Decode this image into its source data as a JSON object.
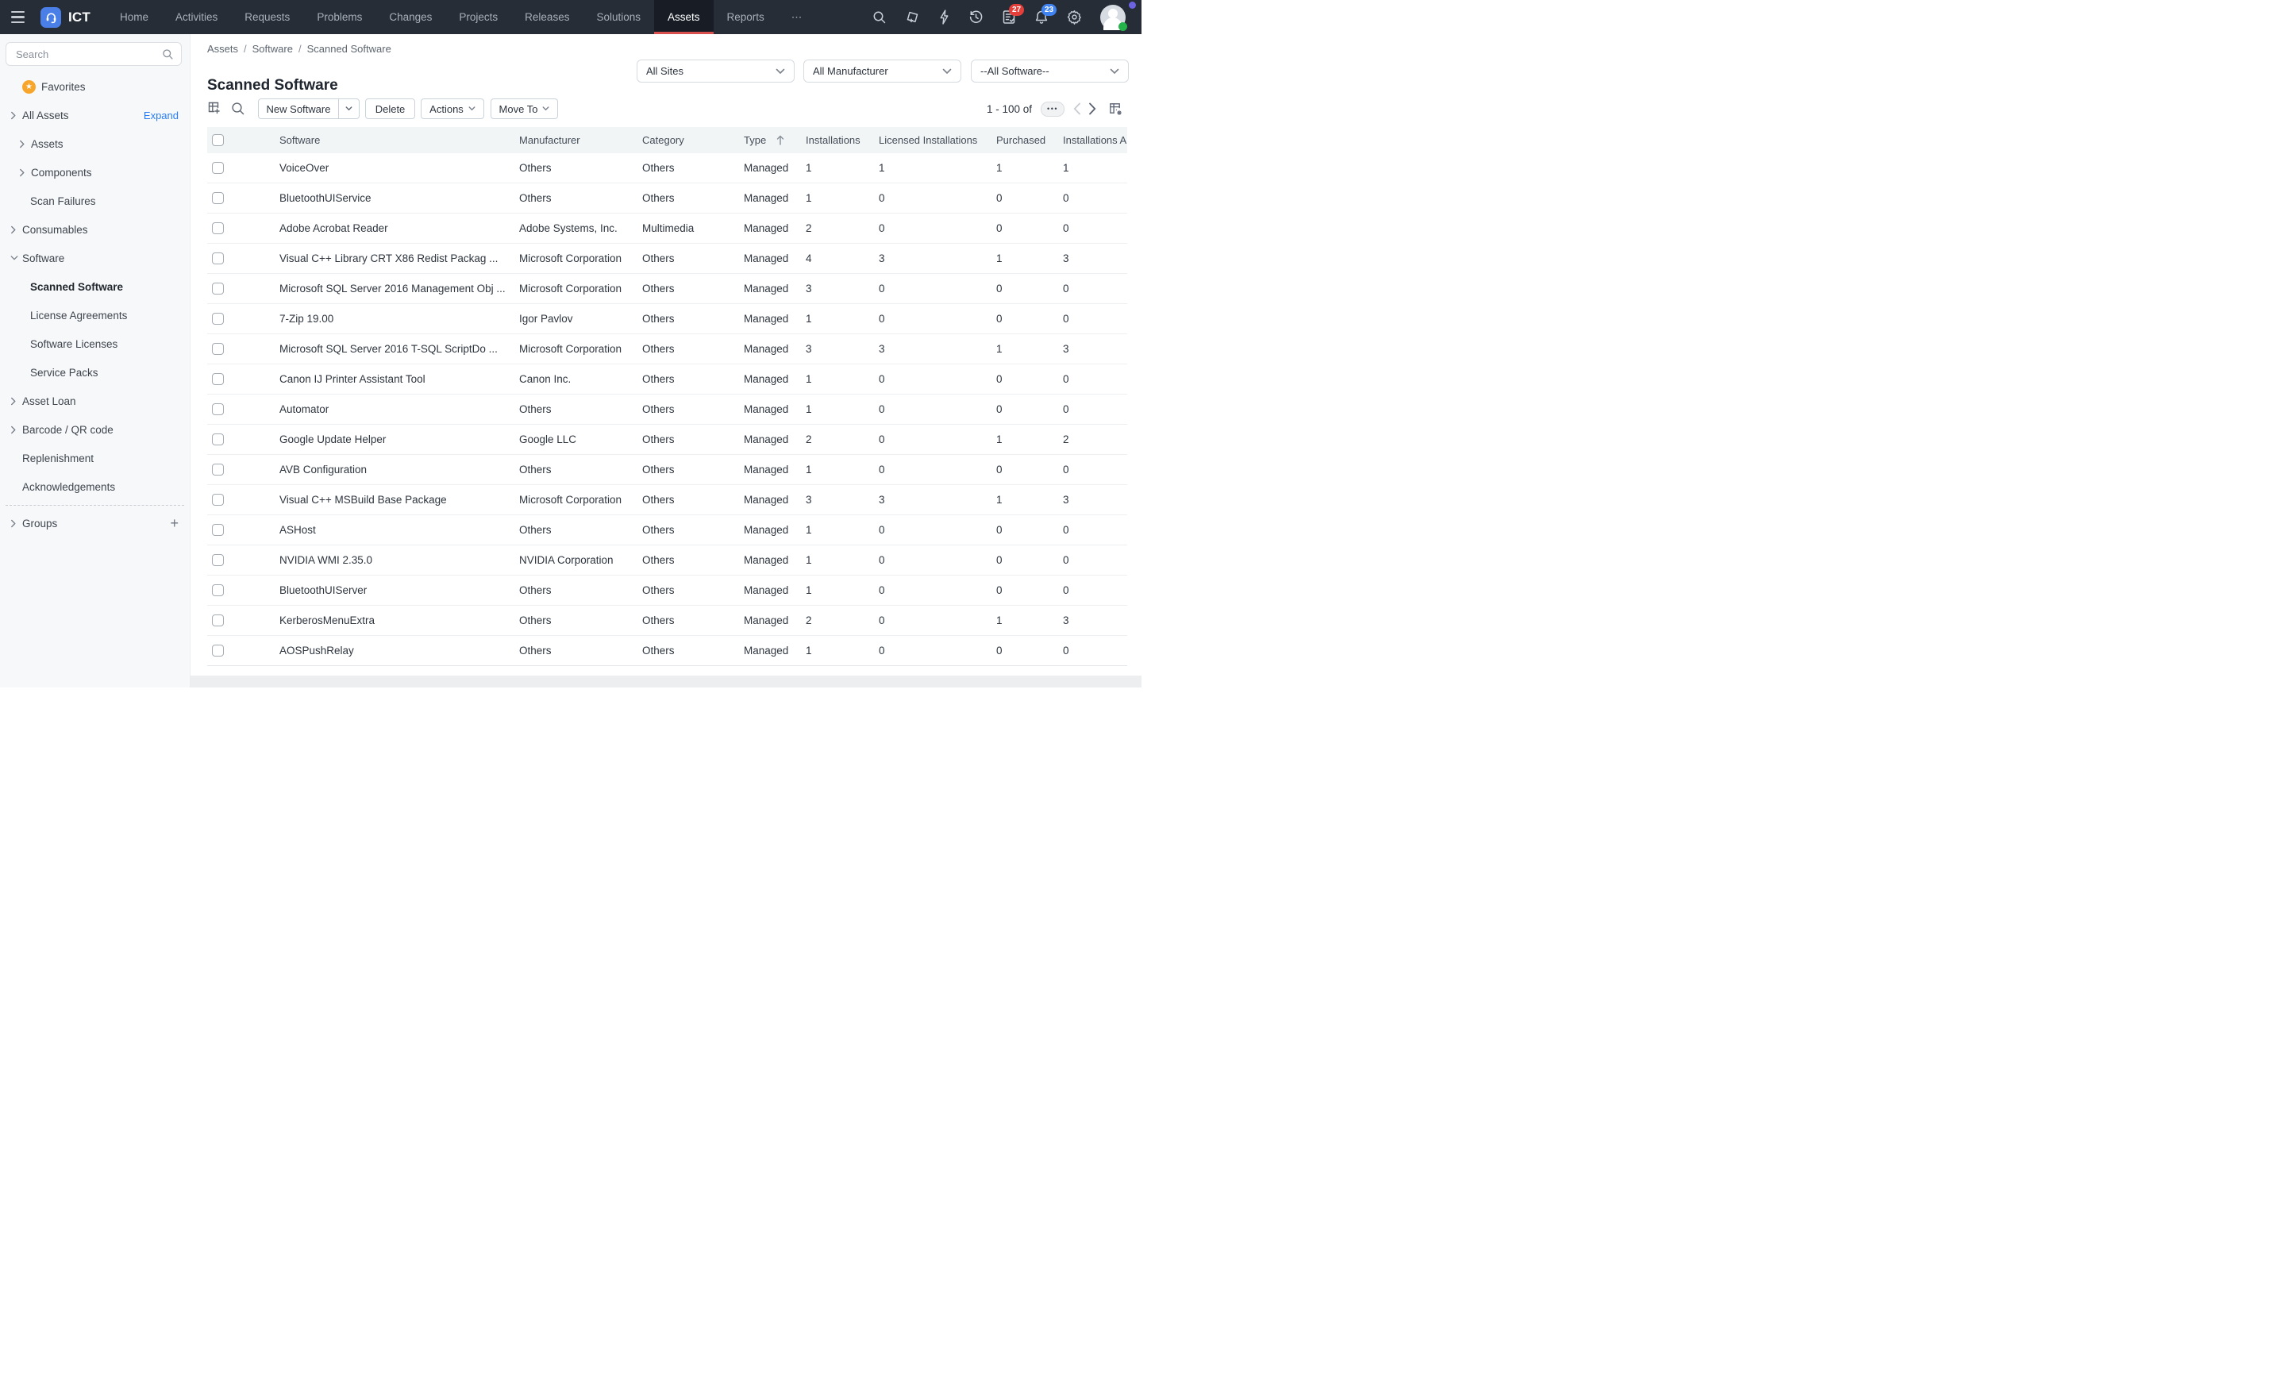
{
  "nav": {
    "brand": "ICT",
    "items": [
      "Home",
      "Activities",
      "Requests",
      "Problems",
      "Changes",
      "Projects",
      "Releases",
      "Solutions",
      "Assets",
      "Reports",
      "⋯"
    ],
    "active": "Assets",
    "badges": {
      "approvals": "27",
      "notifications": "23"
    },
    "icons": [
      "hamburger-icon",
      "headset-logo-icon",
      "search-icon",
      "ticket-add-icon",
      "lightning-icon",
      "history-icon",
      "approvals-icon",
      "bell-icon",
      "gear-icon",
      "avatar"
    ]
  },
  "sidebar": {
    "search_placeholder": "Search",
    "expand_label": "Expand",
    "items": [
      {
        "label": "Favorites",
        "level": 1,
        "icon": "star",
        "chevron": null
      },
      {
        "label": "All Assets",
        "level": 1,
        "chevron": "right",
        "trailing": "expand"
      },
      {
        "label": "Assets",
        "level": 2,
        "chevron": "right"
      },
      {
        "label": "Components",
        "level": 2,
        "chevron": "right"
      },
      {
        "label": "Scan Failures",
        "level": 2,
        "chevron": null
      },
      {
        "label": "Consumables",
        "level": 1,
        "chevron": "right"
      },
      {
        "label": "Software",
        "level": 1,
        "chevron": "down"
      },
      {
        "label": "Scanned Software",
        "level": 3,
        "chevron": null,
        "bold": true
      },
      {
        "label": "License Agreements",
        "level": 3,
        "chevron": null
      },
      {
        "label": "Software Licenses",
        "level": 3,
        "chevron": null
      },
      {
        "label": "Service Packs",
        "level": 3,
        "chevron": null
      },
      {
        "label": "Asset Loan",
        "level": 1,
        "chevron": "right"
      },
      {
        "label": "Barcode / QR code",
        "level": 1,
        "chevron": "right"
      },
      {
        "label": "Replenishment",
        "level": 1,
        "chevron": null
      },
      {
        "label": "Acknowledgements",
        "level": 1,
        "chevron": null
      },
      {
        "label": "Groups",
        "level": 1,
        "chevron": "right",
        "trailing": "plus",
        "divider_before": true
      }
    ]
  },
  "breadcrumb": [
    "Assets",
    "Software",
    "Scanned Software"
  ],
  "page_title": "Scanned Software",
  "filters": [
    "All Sites",
    "All Manufacturer",
    "--All Software--"
  ],
  "toolbar": {
    "new_software": "New Software",
    "delete": "Delete",
    "actions": "Actions",
    "move_to": "Move To",
    "icons": [
      "add-view-icon",
      "search-icon"
    ]
  },
  "pagination": {
    "range_label": "1 - 100 of",
    "more": "•••"
  },
  "table": {
    "columns": [
      "Software",
      "Manufacturer",
      "Category",
      "Type",
      "Installations",
      "Licensed Installations",
      "Purchased",
      "Installations A"
    ],
    "sorted_column": "Type",
    "sort_direction": "asc",
    "rows": [
      [
        "VoiceOver",
        "Others",
        "Others",
        "Managed",
        "1",
        "1",
        "1",
        "1"
      ],
      [
        "BluetoothUIService",
        "Others",
        "Others",
        "Managed",
        "1",
        "0",
        "0",
        "0"
      ],
      [
        "Adobe Acrobat Reader",
        "Adobe Systems, Inc.",
        "Multimedia",
        "Managed",
        "2",
        "0",
        "0",
        "0"
      ],
      [
        "Visual C++ Library CRT X86 Redist Packag ...",
        "Microsoft Corporation",
        "Others",
        "Managed",
        "4",
        "3",
        "1",
        "3"
      ],
      [
        "Microsoft SQL Server 2016 Management Obj ...",
        "Microsoft Corporation",
        "Others",
        "Managed",
        "3",
        "0",
        "0",
        "0"
      ],
      [
        "7-Zip 19.00",
        "Igor Pavlov",
        "Others",
        "Managed",
        "1",
        "0",
        "0",
        "0"
      ],
      [
        "Microsoft SQL Server 2016 T-SQL ScriptDo ...",
        "Microsoft Corporation",
        "Others",
        "Managed",
        "3",
        "3",
        "1",
        "3"
      ],
      [
        "Canon IJ Printer Assistant Tool",
        "Canon Inc.",
        "Others",
        "Managed",
        "1",
        "0",
        "0",
        "0"
      ],
      [
        "Automator",
        "Others",
        "Others",
        "Managed",
        "1",
        "0",
        "0",
        "0"
      ],
      [
        "Google Update Helper",
        "Google LLC",
        "Others",
        "Managed",
        "2",
        "0",
        "1",
        "2"
      ],
      [
        "AVB Configuration",
        "Others",
        "Others",
        "Managed",
        "1",
        "0",
        "0",
        "0"
      ],
      [
        "Visual C++ MSBuild Base Package",
        "Microsoft Corporation",
        "Others",
        "Managed",
        "3",
        "3",
        "1",
        "3"
      ],
      [
        "ASHost",
        "Others",
        "Others",
        "Managed",
        "1",
        "0",
        "0",
        "0"
      ],
      [
        "NVIDIA WMI 2.35.0",
        "NVIDIA Corporation",
        "Others",
        "Managed",
        "1",
        "0",
        "0",
        "0"
      ],
      [
        "BluetoothUIServer",
        "Others",
        "Others",
        "Managed",
        "1",
        "0",
        "0",
        "0"
      ],
      [
        "KerberosMenuExtra",
        "Others",
        "Others",
        "Managed",
        "2",
        "0",
        "1",
        "3"
      ],
      [
        "AOSPushRelay",
        "Others",
        "Others",
        "Managed",
        "1",
        "0",
        "0",
        "0"
      ]
    ]
  },
  "colors": {
    "nav_bg": "#262D37",
    "nav_active_bg": "#171C25",
    "accent_red": "#D8504D",
    "badge_red": "#E43F3A",
    "badge_blue": "#4082EF",
    "link_blue": "#2A7DF5",
    "star_orange": "#F7A62B",
    "status_green": "#25B24B",
    "corner_purple": "#6C63E0",
    "sidebar_bg": "#F7F8F9",
    "table_header_bg": "#F1F5F6"
  }
}
